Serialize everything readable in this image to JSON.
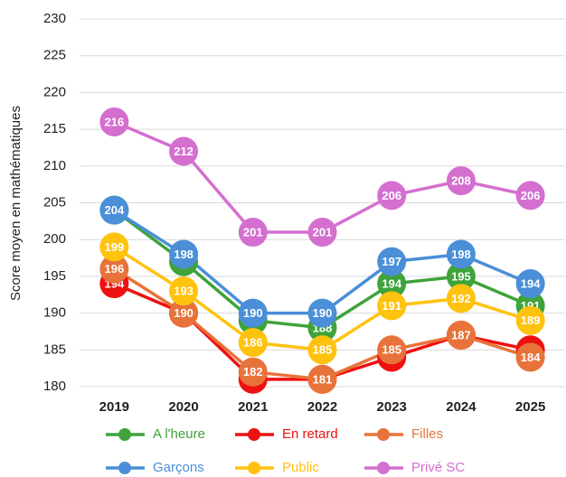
{
  "chart_data": {
    "type": "line",
    "ylabel": "Score moyen en mathématiques",
    "categories": [
      "2019",
      "2020",
      "2021",
      "2022",
      "2023",
      "2024",
      "2025"
    ],
    "ylim": [
      180,
      230
    ],
    "yticks": [
      180,
      185,
      190,
      195,
      200,
      205,
      210,
      215,
      220,
      225,
      230
    ],
    "grid": true,
    "series": [
      {
        "name": "A l'heure",
        "color": "#3ea33a",
        "values": [
          204,
          197,
          189,
          188,
          194,
          195,
          191
        ]
      },
      {
        "name": "En retard",
        "color": "#ee1111",
        "values": [
          194,
          190,
          181,
          181,
          184,
          187,
          185
        ]
      },
      {
        "name": "Filles",
        "color": "#e8733a",
        "values": [
          196,
          190,
          182,
          181,
          185,
          187,
          184
        ]
      },
      {
        "name": "Garçons",
        "color": "#4a8fd8",
        "values": [
          204,
          198,
          190,
          190,
          197,
          198,
          194
        ]
      },
      {
        "name": "Public",
        "color": "#ffc20e",
        "values": [
          199,
          193,
          186,
          185,
          191,
          192,
          189
        ]
      },
      {
        "name": "Privé SC",
        "color": "#d46fd0",
        "values": [
          216,
          212,
          201,
          201,
          206,
          208,
          206
        ]
      }
    ]
  }
}
